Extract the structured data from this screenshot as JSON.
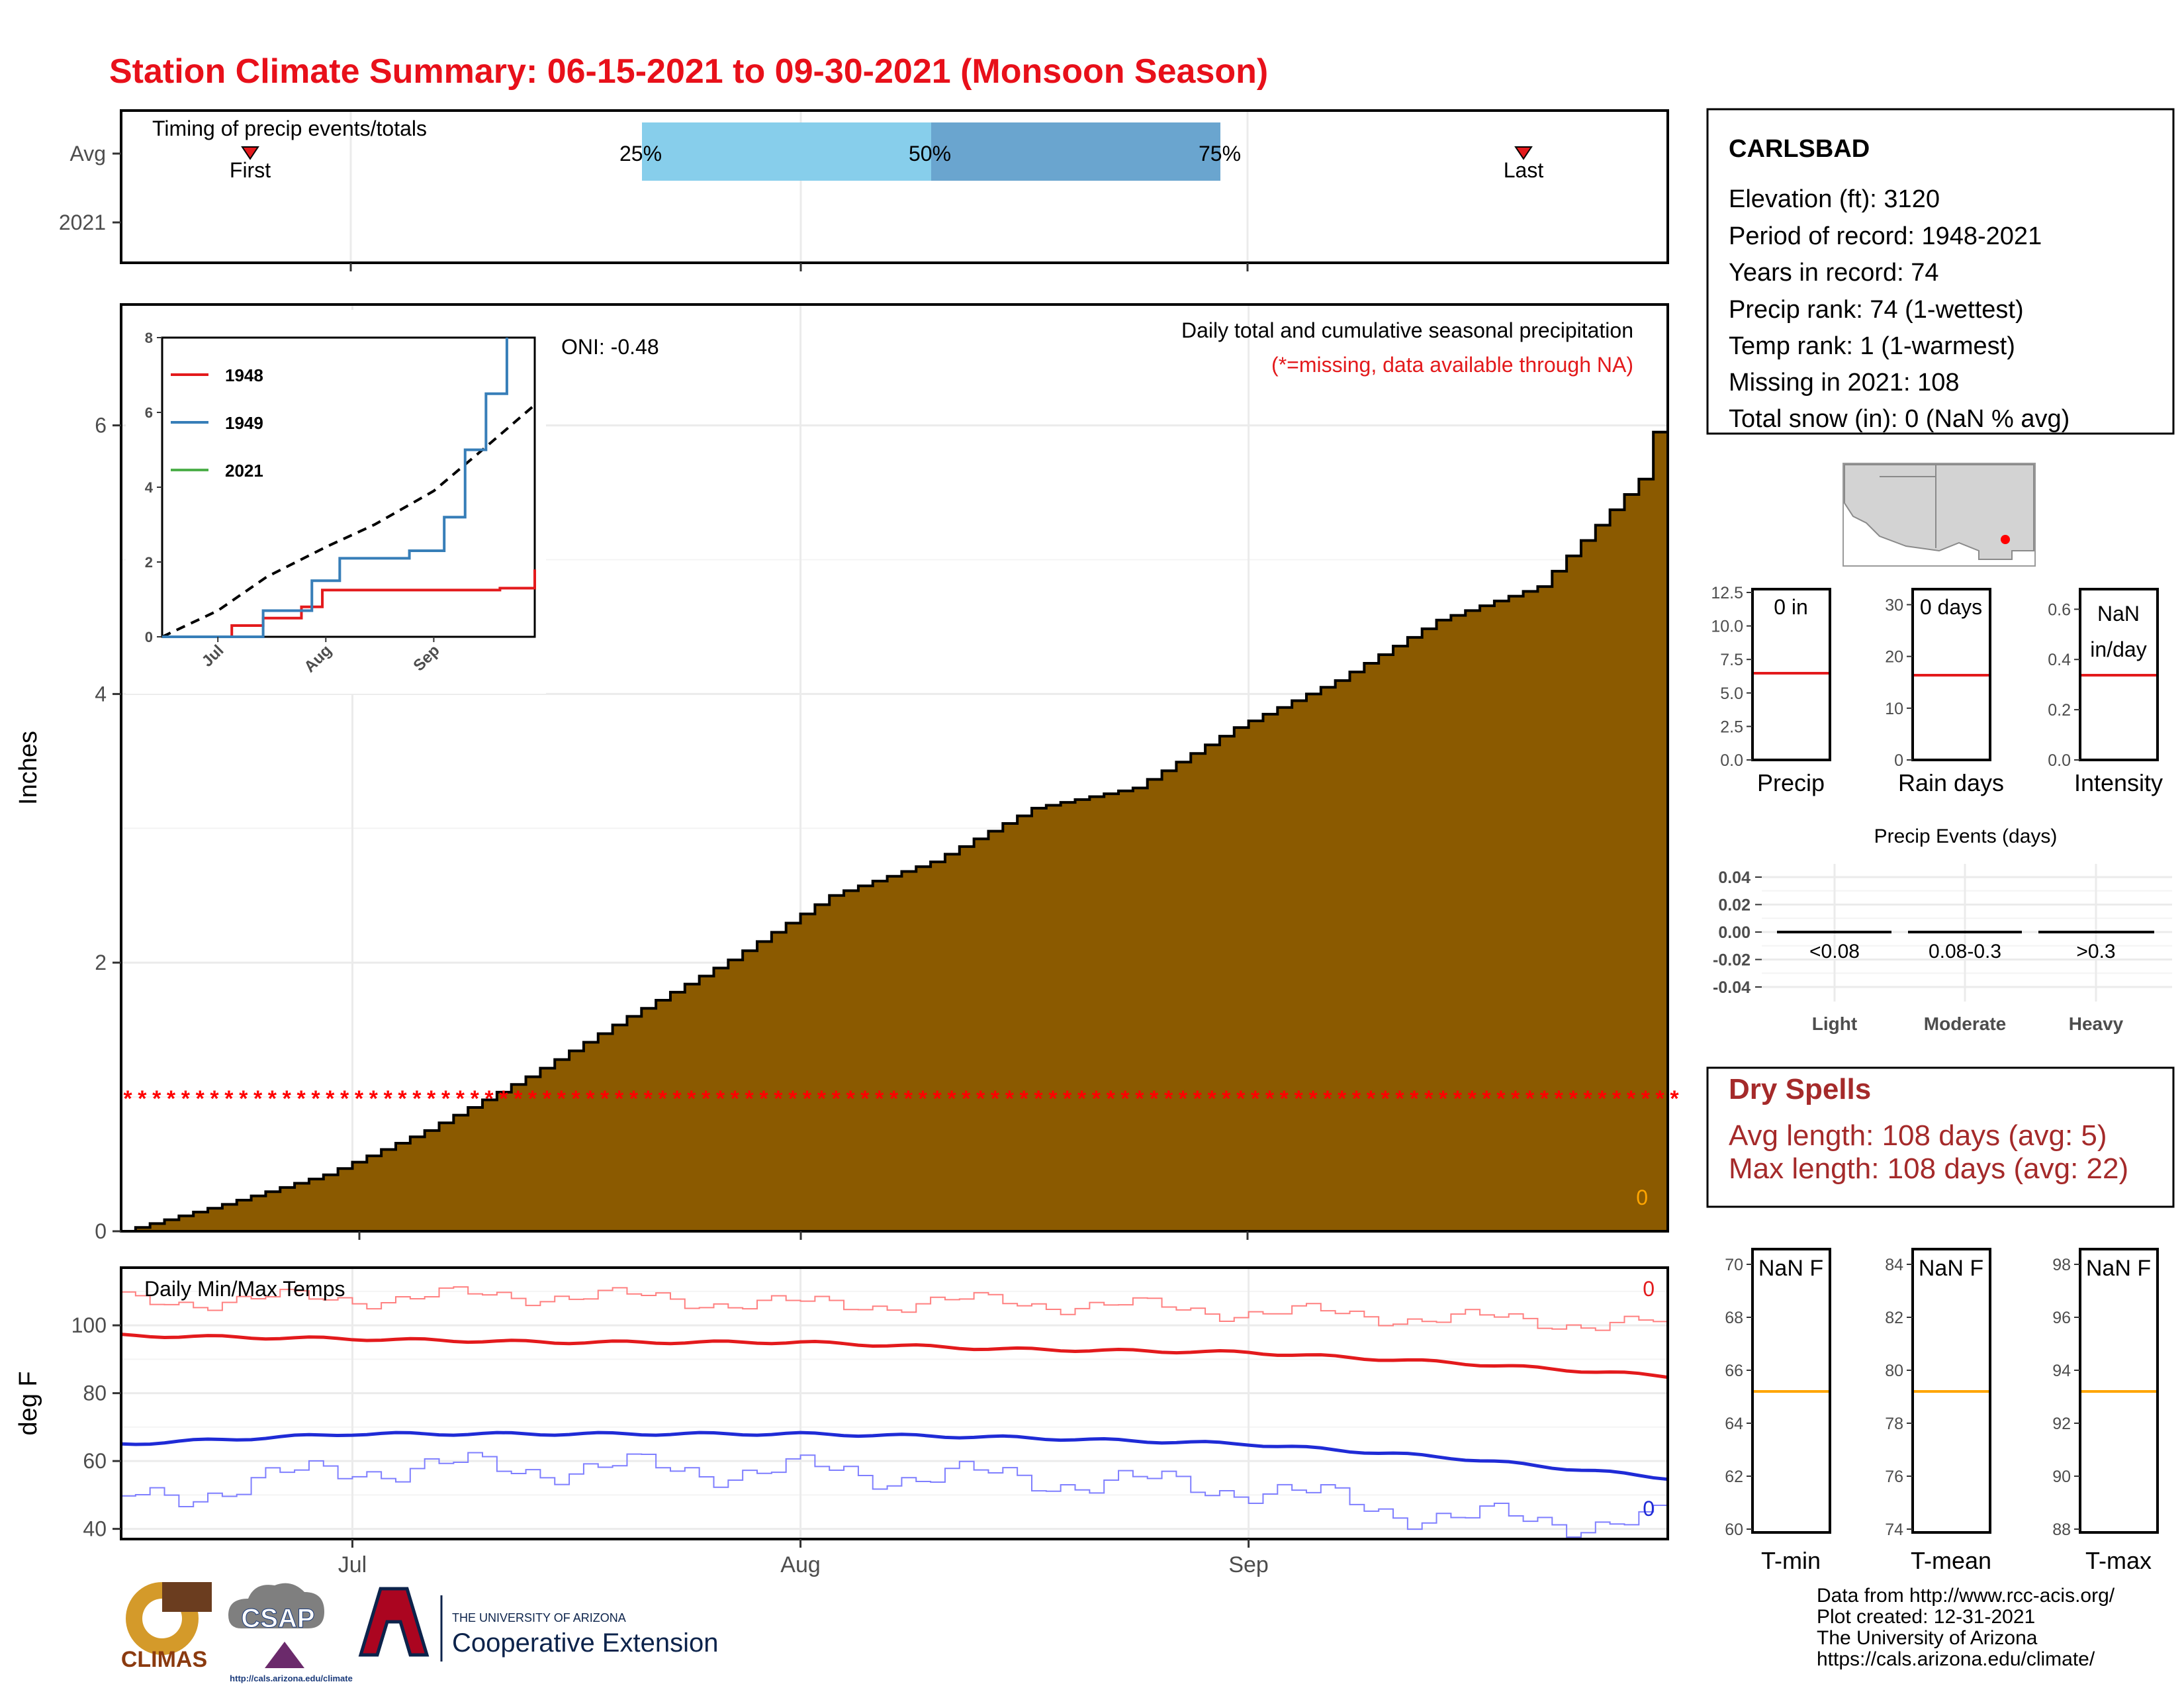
{
  "title": "Station Climate Summary: 06-15-2021 to 09-30-2021 (Monsoon Season)",
  "colors": {
    "title": "#e8101a",
    "cumulative_fill": "#8b5a00",
    "q_light": "#87ceeb",
    "q_dark": "#6aa5cf",
    "red": "#e31a1c",
    "blue": "#1f2bd6",
    "orange": "#ffa500",
    "dryspell": "#a52a2a",
    "grid": "#ebebeb",
    "inset_1949": "#377eb8",
    "inset_2021": "#4daf4a"
  },
  "timing": {
    "label": "Timing of precip events/totals",
    "y_labels": [
      "Avg",
      "2021"
    ],
    "first_label": "First",
    "last_label": "Last",
    "q25": "25%",
    "q50": "50%",
    "q75": "75%"
  },
  "main": {
    "ylabel": "Inches",
    "y_ticks": [
      "0",
      "2",
      "4",
      "6"
    ],
    "oni": "ONI: -0.48",
    "desc": "Daily total and cumulative seasonal precipitation",
    "missing_note": "(*=missing, data available through NA)",
    "zero_label": "0"
  },
  "inset": {
    "y_ticks": [
      "0",
      "2",
      "4",
      "6",
      "8"
    ],
    "x_ticks": [
      "Jul",
      "Aug",
      "Sep"
    ],
    "legend": [
      {
        "name": "1948",
        "color": "#e31a1c"
      },
      {
        "name": "1949",
        "color": "#377eb8"
      },
      {
        "name": "2021",
        "color": "#4daf4a"
      }
    ]
  },
  "temps": {
    "label": "Daily Min/Max Temps",
    "ylabel": "deg F",
    "y_ticks": [
      "40",
      "60",
      "80",
      "100"
    ],
    "x_ticks": [
      "Jul",
      "Aug",
      "Sep"
    ],
    "max_count": "0",
    "min_count": "0"
  },
  "station": {
    "name": "CARLSBAD",
    "lines": [
      "Elevation (ft): 3120",
      "Period of record: 1948-2021",
      "Years in record: 74",
      "Precip rank: 74 (1-wettest)",
      "Temp rank: 1 (1-warmest)",
      "Missing in 2021: 108",
      "Total snow (in): 0 (NaN % avg)"
    ]
  },
  "mini_precip": [
    {
      "label": "Precip",
      "value": "0 in",
      "value2": "",
      "ticks": [
        "0.0",
        "2.5",
        "5.0",
        "7.5",
        "10.0",
        "12.5"
      ]
    },
    {
      "label": "Rain days",
      "value": "0 days",
      "value2": "",
      "ticks": [
        "0",
        "10",
        "20",
        "30"
      ]
    },
    {
      "label": "Intensity",
      "value": "NaN",
      "value2": "in/day",
      "ticks": [
        "0.0",
        "0.2",
        "0.4",
        "0.6"
      ]
    }
  ],
  "events": {
    "title": "Precip Events (days)",
    "y_ticks": [
      "0.04",
      "0.02",
      "0.00",
      "-0.02",
      "-0.04"
    ],
    "categories": [
      "Light",
      "Moderate",
      "Heavy"
    ],
    "bins": [
      "<0.08",
      "0.08-0.3",
      ">0.3"
    ]
  },
  "dry_spells": {
    "title": "Dry Spells",
    "avg": "Avg length: 108 days (avg: 5)",
    "max": "Max length: 108 days (avg: 22)"
  },
  "mini_temp": [
    {
      "label": "T-min",
      "value": "NaN F",
      "ticks": [
        "60",
        "62",
        "64",
        "66",
        "68",
        "70"
      ]
    },
    {
      "label": "T-mean",
      "value": "NaN F",
      "ticks": [
        "74",
        "76",
        "78",
        "80",
        "82",
        "84"
      ]
    },
    {
      "label": "T-max",
      "value": "NaN F",
      "ticks": [
        "88",
        "90",
        "92",
        "94",
        "96",
        "98"
      ]
    }
  ],
  "credits": [
    "Data from http://www.rcc-acis.org/",
    "Plot created: 12-31-2021",
    "The University of Arizona",
    "https://cals.arizona.edu/climate/"
  ],
  "logos": {
    "climas": "CLIMAS",
    "csap": "CSAP",
    "csap_url": "http://cals.arizona.edu/climate",
    "ua_small": "THE UNIVERSITY OF ARIZONA",
    "coop": "Cooperative Extension"
  },
  "chart_data": [
    {
      "type": "area",
      "title": "Daily total and cumulative seasonal precipitation",
      "ylabel": "Inches",
      "xlabel": "",
      "x_ticks": [
        "Jul",
        "Aug",
        "Sep"
      ],
      "ylim": [
        0,
        6.9
      ],
      "x_start": "2021-06-15",
      "x_end": "2021-09-30",
      "series": [
        {
          "name": "cumulative average",
          "x": [
            "2021-06-15",
            "2021-06-22",
            "2021-06-29",
            "2021-07-06",
            "2021-07-13",
            "2021-07-20",
            "2021-07-27",
            "2021-08-03",
            "2021-08-10",
            "2021-08-17",
            "2021-08-24",
            "2021-08-31",
            "2021-09-07",
            "2021-09-14",
            "2021-09-21",
            "2021-09-28",
            "2021-09-30"
          ],
          "values": [
            0.0,
            0.2,
            0.42,
            0.75,
            1.15,
            1.6,
            2.02,
            2.5,
            2.75,
            3.15,
            3.3,
            3.75,
            4.1,
            4.55,
            4.8,
            5.6,
            6.3
          ]
        }
      ],
      "missing_marker_y": 1.0,
      "grid": true
    },
    {
      "type": "line",
      "title": "",
      "ylim": [
        0,
        8
      ],
      "x_ticks": [
        "Jul",
        "Aug",
        "Sep"
      ],
      "series": [
        {
          "name": "1948",
          "x": [
            "2021-06-15",
            "2021-07-05",
            "2021-07-14",
            "2021-07-25",
            "2021-07-31",
            "2021-09-20",
            "2021-09-30"
          ],
          "values": [
            0.0,
            0.3,
            0.5,
            0.8,
            1.25,
            1.3,
            1.8
          ]
        },
        {
          "name": "1949",
          "x": [
            "2021-06-15",
            "2021-07-14",
            "2021-07-28",
            "2021-08-05",
            "2021-08-25",
            "2021-09-04",
            "2021-09-10",
            "2021-09-16",
            "2021-09-22"
          ],
          "values": [
            0.0,
            0.7,
            1.5,
            2.1,
            2.3,
            3.2,
            5.0,
            6.5,
            8.0
          ]
        },
        {
          "name": "average",
          "x": [
            "2021-06-15",
            "2021-07-01",
            "2021-07-15",
            "2021-08-01",
            "2021-08-15",
            "2021-09-01",
            "2021-09-15",
            "2021-09-30"
          ],
          "values": [
            0.0,
            0.7,
            1.6,
            2.4,
            3.0,
            3.9,
            5.0,
            6.2
          ]
        }
      ]
    },
    {
      "type": "line",
      "title": "Daily Min/Max Temps",
      "ylabel": "deg F",
      "x_ticks": [
        "Jul",
        "Aug",
        "Sep"
      ],
      "ylim": [
        37,
        117
      ],
      "series": [
        {
          "name": "record max",
          "x": [
            "2021-06-15",
            "2021-07-01",
            "2021-07-15",
            "2021-08-01",
            "2021-08-15",
            "2021-09-01",
            "2021-09-15",
            "2021-09-30"
          ],
          "values": [
            107,
            108,
            109,
            106,
            107,
            104,
            102,
            100
          ]
        },
        {
          "name": "avg max",
          "x": [
            "2021-06-15",
            "2021-07-01",
            "2021-07-15",
            "2021-08-01",
            "2021-08-15",
            "2021-09-01",
            "2021-09-15",
            "2021-09-30"
          ],
          "values": [
            97,
            96,
            95,
            95,
            93,
            92,
            89,
            85
          ]
        },
        {
          "name": "avg min",
          "x": [
            "2021-06-15",
            "2021-07-01",
            "2021-07-15",
            "2021-08-01",
            "2021-08-15",
            "2021-09-01",
            "2021-09-15",
            "2021-09-30"
          ],
          "values": [
            65,
            68,
            68,
            68,
            67,
            65,
            61,
            55
          ]
        },
        {
          "name": "record min",
          "x": [
            "2021-06-15",
            "2021-07-01",
            "2021-07-15",
            "2021-08-01",
            "2021-08-15",
            "2021-09-01",
            "2021-09-15",
            "2021-09-30"
          ],
          "values": [
            48,
            58,
            58,
            57,
            55,
            52,
            43,
            42
          ]
        }
      ]
    },
    {
      "type": "bar",
      "title": "Precip Events (days)",
      "categories": [
        "Light",
        "Moderate",
        "Heavy"
      ],
      "values": [
        0,
        0,
        0
      ],
      "ylim": [
        -0.04,
        0.04
      ]
    }
  ]
}
